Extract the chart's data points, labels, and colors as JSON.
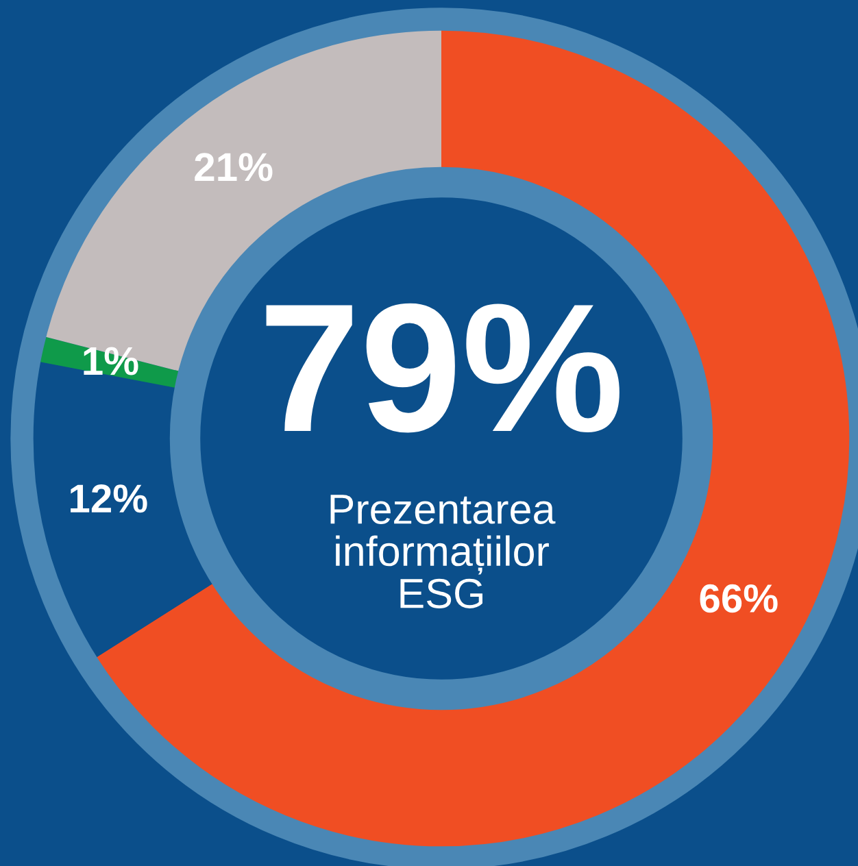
{
  "chart_data": {
    "type": "donut",
    "categories": [
      null,
      null,
      null,
      null
    ],
    "values": [
      66,
      12,
      1,
      21
    ],
    "colors": [
      "#f04e23",
      "#0b4f8b",
      "#0f9a4a",
      "#c3bcbc"
    ],
    "value_labels": [
      "66%",
      "12%",
      "1%",
      "21%"
    ],
    "annotations": [
      "79%",
      "Prezentarea informațiilor ESG"
    ]
  }
}
